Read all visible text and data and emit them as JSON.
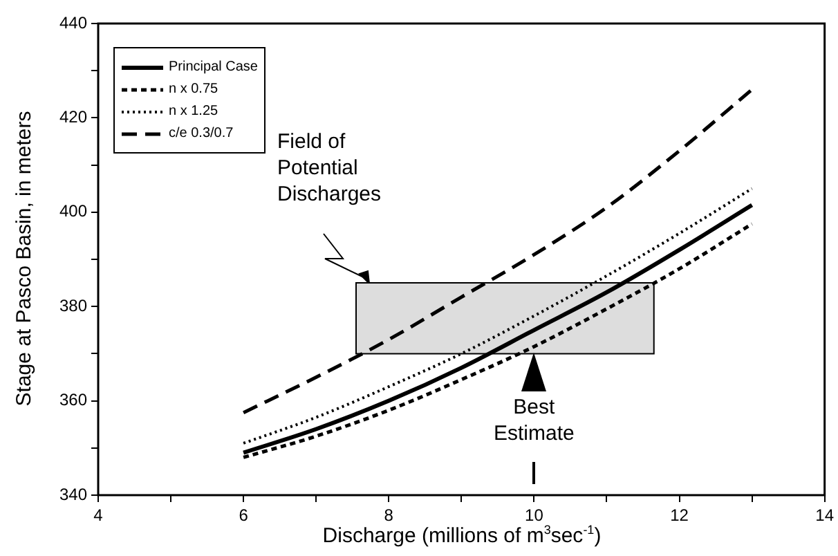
{
  "chart_data": {
    "type": "line",
    "xlabel": "Discharge (millions of m$^{3}$sec$^{-1}$)",
    "ylabel": "Stage at Pasco Basin, in meters",
    "xlim": [
      4,
      14
    ],
    "xticks": [
      4,
      {
        "value": 5,
        "label": null
      },
      6,
      {
        "value": 7,
        "label": null
      },
      8,
      {
        "value": 9,
        "label": null
      },
      10,
      {
        "value": 11,
        "label": null
      },
      12,
      {
        "value": 13,
        "label": null
      },
      14
    ],
    "ylim": [
      340,
      440
    ],
    "yticks": [
      340,
      {
        "value": 350,
        "label": null
      },
      360,
      {
        "value": 370,
        "label": null
      },
      380,
      {
        "value": 390,
        "label": null
      },
      400,
      {
        "value": 410,
        "label": null
      },
      420,
      {
        "value": 430,
        "label": null
      },
      440
    ],
    "grid": false,
    "legend": "top left",
    "marker": "none",
    "series": [
      {
        "color": "#dddddd",
        "x": [
          7.55,
          11.65
        ],
        "values": [
          null,
          null
        ],
        "lower": [
          370,
          370
        ],
        "upper": [
          385,
          385
        ]
      },
      {
        "name": "Principal Case",
        "color": "#000000",
        "line_style": "solid",
        "x": [
          6,
          7,
          8,
          9,
          10,
          11,
          12,
          13
        ],
        "values": [
          349,
          354,
          360,
          367,
          375,
          383,
          392,
          401.5
        ]
      },
      {
        "name": "n x 0.75",
        "color": "#000000",
        "line_style": "dashed",
        "x": [
          6,
          7,
          8,
          9,
          10,
          11,
          12,
          13
        ],
        "values": [
          348,
          352.5,
          358,
          364.5,
          371.5,
          379.5,
          388,
          397.5
        ]
      },
      {
        "name": "n x 1.25",
        "color": "#000000",
        "line_style": "dotted",
        "x": [
          6,
          7,
          8,
          9,
          10,
          11,
          12,
          13
        ],
        "values": [
          351,
          356.5,
          363,
          370,
          378,
          386.5,
          395.5,
          405
        ]
      },
      {
        "name": "c/e 0.3/0.7",
        "color": "#000000",
        "line_style": "longdash",
        "x": [
          6,
          7,
          8,
          9,
          10,
          11,
          12,
          13
        ],
        "values": [
          357.5,
          365,
          373,
          382,
          391,
          401,
          413,
          426
        ]
      }
    ],
    "annotations": [
      "Field of Potential Discharges",
      {
        "text": "Best Estimate",
        "x": 10,
        "y": 371
      }
    ]
  }
}
